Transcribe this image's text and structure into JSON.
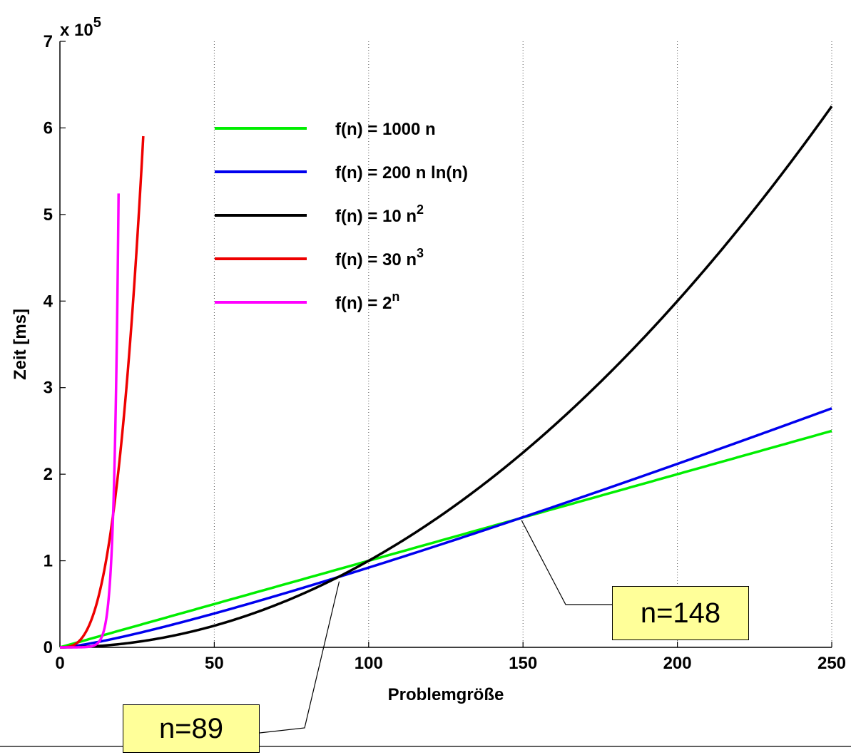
{
  "chart_data": {
    "type": "line",
    "title": "",
    "xlabel": "Problemgröße",
    "ylabel": "Zeit [ms]",
    "y_multiplier_label": "x 10",
    "y_multiplier_exponent": "5",
    "xlim": [
      0,
      250
    ],
    "ylim": [
      0,
      7
    ],
    "x_ticks": [
      "0",
      "50",
      "100",
      "150",
      "200",
      "250"
    ],
    "y_ticks": [
      "0",
      "1",
      "2",
      "3",
      "4",
      "5",
      "6",
      "7"
    ],
    "grid": "vertical dotted",
    "legend_position": "top-left",
    "series": [
      {
        "name": "f(n) = 1000 n",
        "label_base": "f(n) = 1000 n",
        "label_sup": "",
        "color": "#00ee00",
        "formula": "1000*n",
        "x_range": [
          0,
          250
        ]
      },
      {
        "name": "f(n) = 200 n ln(n)",
        "label_base": "f(n) = 200 n ln(n)",
        "label_sup": "",
        "color": "#0000ee",
        "formula": "200*n*ln(n)",
        "x_range": [
          1,
          250
        ]
      },
      {
        "name": "f(n) = 10 n2",
        "label_base": "f(n) = 10 n",
        "label_sup": "2",
        "color": "#000000",
        "formula": "10*n^2",
        "x_range": [
          0,
          250
        ]
      },
      {
        "name": "f(n) = 30 n3",
        "label_base": "f(n) = 30 n",
        "label_sup": "3",
        "color": "#ee0000",
        "formula": "30*n^3",
        "x_range": [
          0,
          27
        ]
      },
      {
        "name": "f(n) = 2n",
        "label_base": "f(n) = 2",
        "label_sup": "n",
        "color": "#ff00ff",
        "formula": "2^n",
        "x_range": [
          0,
          19
        ]
      }
    ],
    "annotations": [
      {
        "text": "n=148",
        "x": 150,
        "y": 1.5
      },
      {
        "text": "n=89",
        "x": 90,
        "y": 0.81
      }
    ]
  }
}
